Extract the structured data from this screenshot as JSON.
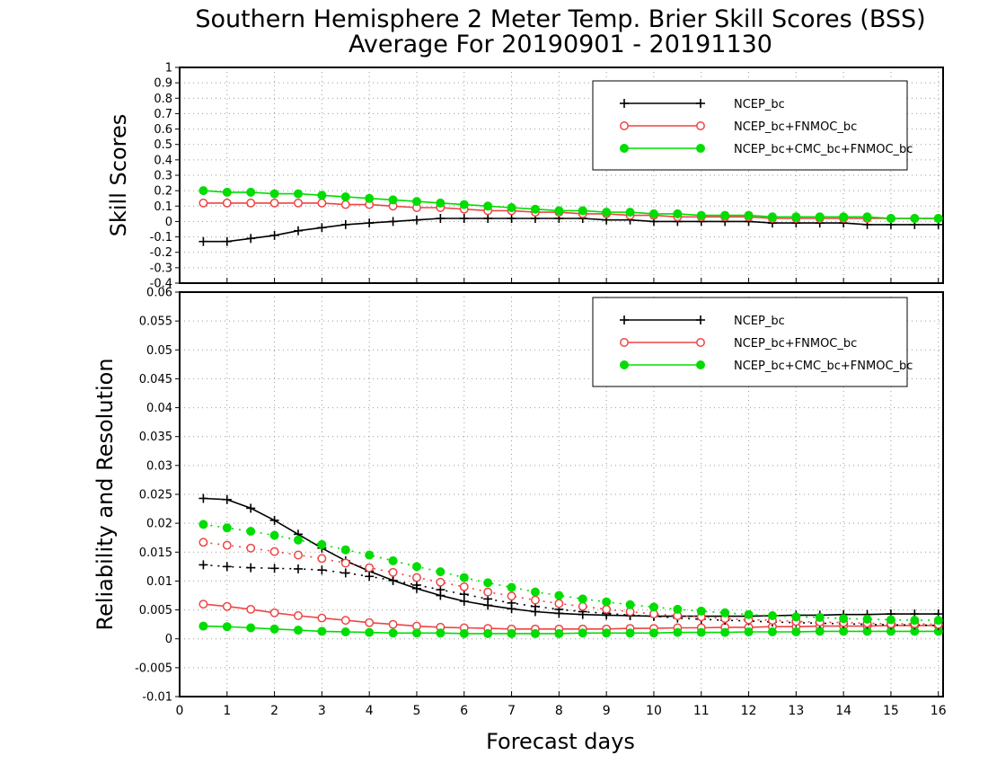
{
  "chart_data": [
    {
      "type": "line",
      "title": "Southern Hemisphere 2 Meter Temp. Brier Skill Scores (BSS)",
      "subtitle": "Average For 20190901 - 20191130",
      "ylabel": "Skill Scores",
      "xlabel": "",
      "ylim": [
        -0.4,
        1
      ],
      "yticks": [
        "-0.4",
        "-0.3",
        "-0.2",
        "-0.1",
        "0",
        "0.1",
        "0.2",
        "0.3",
        "0.4",
        "0.5",
        "0.6",
        "0.7",
        "0.8",
        "0.9",
        "1"
      ],
      "grid": true,
      "legend_position": "top-right",
      "x": [
        0.5,
        1,
        1.5,
        2,
        2.5,
        3,
        3.5,
        4,
        4.5,
        5,
        5.5,
        6,
        6.5,
        7,
        7.5,
        8,
        8.5,
        9,
        9.5,
        10,
        10.5,
        11,
        11.5,
        12,
        12.5,
        13,
        13.5,
        14,
        14.5,
        15,
        15.5,
        16
      ],
      "series": [
        {
          "name": "NCEP_bc",
          "color": "#000000",
          "marker": "plus",
          "line": "solid",
          "values": [
            -0.13,
            -0.13,
            -0.11,
            -0.09,
            -0.06,
            -0.04,
            -0.02,
            -0.01,
            0.0,
            0.01,
            0.02,
            0.02,
            0.02,
            0.02,
            0.02,
            0.02,
            0.02,
            0.01,
            0.01,
            0.0,
            0.0,
            0.0,
            0.0,
            0.0,
            -0.01,
            -0.01,
            -0.01,
            -0.01,
            -0.02,
            -0.02,
            -0.02,
            -0.02
          ]
        },
        {
          "name": "NCEP_bc+FNMOC_bc",
          "color": "#ee4444",
          "marker": "open-circle",
          "line": "solid",
          "values": [
            0.12,
            0.12,
            0.12,
            0.12,
            0.12,
            0.12,
            0.11,
            0.11,
            0.1,
            0.09,
            0.09,
            0.08,
            0.07,
            0.07,
            0.06,
            0.06,
            0.05,
            0.05,
            0.04,
            0.04,
            0.03,
            0.03,
            0.03,
            0.03,
            0.02,
            0.02,
            0.02,
            0.02,
            0.02,
            0.02,
            0.02,
            0.02
          ]
        },
        {
          "name": "NCEP_bc+CMC_bc+FNMOC_bc",
          "color": "#00dd00",
          "marker": "filled-circle",
          "line": "solid",
          "values": [
            0.2,
            0.19,
            0.19,
            0.18,
            0.18,
            0.17,
            0.16,
            0.15,
            0.14,
            0.13,
            0.12,
            0.11,
            0.1,
            0.09,
            0.08,
            0.07,
            0.07,
            0.06,
            0.06,
            0.05,
            0.05,
            0.04,
            0.04,
            0.04,
            0.03,
            0.03,
            0.03,
            0.03,
            0.03,
            0.02,
            0.02,
            0.02
          ]
        }
      ]
    },
    {
      "type": "line",
      "ylabel": "Reliability and Resolution",
      "xlabel": "Forecast days",
      "ylim": [
        -0.01,
        0.06
      ],
      "xlim": [
        0,
        16.1
      ],
      "yticks": [
        "-0.01",
        "-0.005",
        "0",
        "0.005",
        "0.01",
        "0.015",
        "0.02",
        "0.025",
        "0.03",
        "0.035",
        "0.04",
        "0.045",
        "0.05",
        "0.055",
        "0.06"
      ],
      "xticks": [
        "0",
        "1",
        "2",
        "3",
        "4",
        "5",
        "6",
        "7",
        "8",
        "9",
        "10",
        "11",
        "12",
        "13",
        "14",
        "15",
        "16"
      ],
      "grid": true,
      "legend_position": "top-right",
      "x": [
        0.5,
        1,
        1.5,
        2,
        2.5,
        3,
        3.5,
        4,
        4.5,
        5,
        5.5,
        6,
        6.5,
        7,
        7.5,
        8,
        8.5,
        9,
        9.5,
        10,
        10.5,
        11,
        11.5,
        12,
        12.5,
        13,
        13.5,
        14,
        14.5,
        15,
        15.5,
        16
      ],
      "series": [
        {
          "name": "NCEP_bc",
          "color": "#000000",
          "marker": "plus",
          "line": "solid",
          "legend": true,
          "values": [
            0.0243,
            0.0241,
            0.0226,
            0.0205,
            0.0181,
            0.0157,
            0.0135,
            0.0117,
            0.0101,
            0.0087,
            0.0075,
            0.0065,
            0.0058,
            0.0052,
            0.0047,
            0.0044,
            0.0042,
            0.0041,
            0.004,
            0.0039,
            0.0039,
            0.0039,
            0.0039,
            0.0039,
            0.004,
            0.0041,
            0.0041,
            0.0042,
            0.0042,
            0.0043,
            0.0043,
            0.0043
          ]
        },
        {
          "name": "NCEP_bc+FNMOC_bc",
          "color": "#ee4444",
          "marker": "open-circle",
          "line": "solid",
          "legend": true,
          "values": [
            0.006,
            0.0056,
            0.0051,
            0.0045,
            0.004,
            0.0036,
            0.0032,
            0.0028,
            0.0025,
            0.0022,
            0.002,
            0.0019,
            0.0018,
            0.0017,
            0.0017,
            0.0017,
            0.0017,
            0.0017,
            0.0018,
            0.0018,
            0.0019,
            0.0019,
            0.002,
            0.002,
            0.0021,
            0.0021,
            0.0022,
            0.0022,
            0.0022,
            0.0023,
            0.0023,
            0.0023
          ]
        },
        {
          "name": "NCEP_bc+CMC_bc+FNMOC_bc",
          "color": "#00dd00",
          "marker": "filled-circle",
          "line": "solid",
          "legend": true,
          "values": [
            0.0022,
            0.0021,
            0.0019,
            0.0017,
            0.0015,
            0.0013,
            0.0012,
            0.0011,
            0.001,
            0.001,
            0.001,
            0.0009,
            0.0009,
            0.0009,
            0.0009,
            0.0009,
            0.001,
            0.001,
            0.001,
            0.001,
            0.0011,
            0.0011,
            0.0011,
            0.0012,
            0.0012,
            0.0012,
            0.0013,
            0.0013,
            0.0013,
            0.0013,
            0.0013,
            0.0013
          ]
        },
        {
          "name": "NCEP_bc",
          "color": "#000000",
          "marker": "plus",
          "line": "dotted",
          "legend": false,
          "values": [
            0.0128,
            0.0125,
            0.0123,
            0.0122,
            0.0121,
            0.0119,
            0.0114,
            0.0108,
            0.0101,
            0.0093,
            0.0085,
            0.0077,
            0.0069,
            0.0062,
            0.0056,
            0.0051,
            0.0047,
            0.0044,
            0.0041,
            0.0039,
            0.0036,
            0.0034,
            0.0032,
            0.0031,
            0.0029,
            0.0028,
            0.0027,
            0.0026,
            0.0025,
            0.0024,
            0.0024,
            0.0023
          ]
        },
        {
          "name": "NCEP_bc+FNMOC_bc",
          "color": "#ee4444",
          "marker": "open-circle",
          "line": "dotted",
          "legend": false,
          "values": [
            0.0167,
            0.0162,
            0.0157,
            0.0151,
            0.0145,
            0.0139,
            0.0131,
            0.0123,
            0.0115,
            0.0106,
            0.0098,
            0.009,
            0.0081,
            0.0074,
            0.0067,
            0.0061,
            0.0056,
            0.0051,
            0.0047,
            0.0043,
            0.004,
            0.0038,
            0.0035,
            0.0033,
            0.0032,
            0.003,
            0.0029,
            0.0028,
            0.0027,
            0.0026,
            0.0026,
            0.0025
          ]
        },
        {
          "name": "NCEP_bc+CMC_bc+FNMOC_bc",
          "color": "#00dd00",
          "marker": "filled-circle",
          "line": "dotted",
          "legend": false,
          "values": [
            0.0198,
            0.0192,
            0.0186,
            0.0179,
            0.0171,
            0.0163,
            0.0154,
            0.0145,
            0.0135,
            0.0125,
            0.0116,
            0.0106,
            0.0097,
            0.0089,
            0.0081,
            0.0075,
            0.0069,
            0.0064,
            0.0059,
            0.0055,
            0.0051,
            0.0048,
            0.0045,
            0.0042,
            0.004,
            0.0038,
            0.0037,
            0.0035,
            0.0034,
            0.0033,
            0.0032,
            0.0032
          ]
        }
      ]
    }
  ]
}
